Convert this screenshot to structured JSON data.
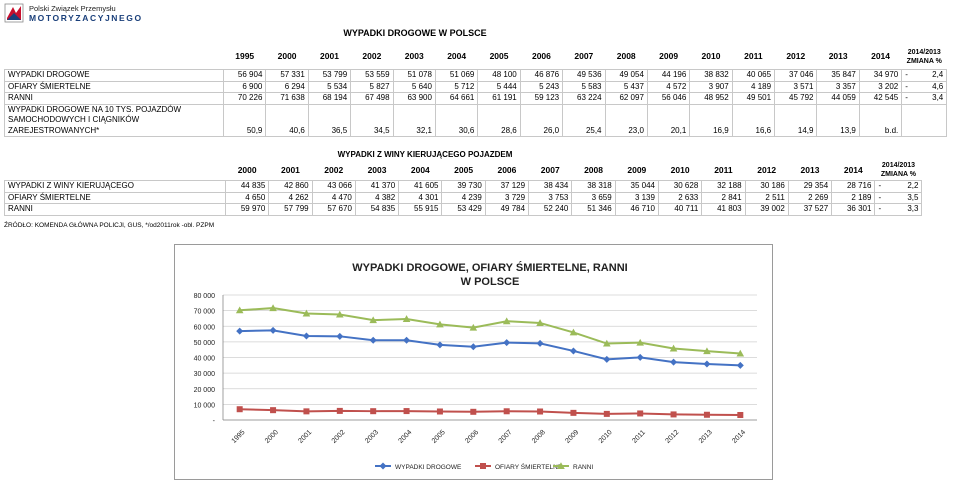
{
  "logo": {
    "line1": "Polski Związek Przemysłu",
    "line2": "MOTORYZACYJNEGO"
  },
  "table1": {
    "title": "WYPADKI DROGOWE W POLSCE",
    "years": [
      "1995",
      "2000",
      "2001",
      "2002",
      "2003",
      "2004",
      "2005",
      "2006",
      "2007",
      "2008",
      "2009",
      "2010",
      "2011",
      "2012",
      "2013",
      "2014"
    ],
    "change_header_line1": "2014/2013",
    "change_header_line2": "ZMIANA %",
    "rows": [
      {
        "label": "WYPADKI DROGOWE",
        "values": [
          "56 904",
          "57 331",
          "53 799",
          "53 559",
          "51 078",
          "51 069",
          "48 100",
          "46 876",
          "49 536",
          "49 054",
          "44 196",
          "38 832",
          "40 065",
          "37 046",
          "35 847",
          "34 970"
        ],
        "sign": "-",
        "change": "2,4"
      },
      {
        "label": "OFIARY ŚMIERTELNE",
        "values": [
          "6 900",
          "6 294",
          "5 534",
          "5 827",
          "5 640",
          "5 712",
          "5 444",
          "5 243",
          "5 583",
          "5 437",
          "4 572",
          "3 907",
          "4 189",
          "3 571",
          "3 357",
          "3 202"
        ],
        "sign": "-",
        "change": "4,6"
      },
      {
        "label": "RANNI",
        "values": [
          "70 226",
          "71 638",
          "68 194",
          "67 498",
          "63 900",
          "64 661",
          "61 191",
          "59 123",
          "63 224",
          "62 097",
          "56 046",
          "48 952",
          "49 501",
          "45 792",
          "44 059",
          "42 545"
        ],
        "sign": "-",
        "change": "3,4"
      },
      {
        "label": "WYPADKI DROGOWE NA 10 TYS. POJAZDÓW SAMOCHODOWYCH I CIĄGNIKÓW ZAREJESTROWANYCH*",
        "values": [
          "50,9",
          "40,6",
          "36,5",
          "34,5",
          "32,1",
          "30,6",
          "28,6",
          "26,0",
          "25,4",
          "23,0",
          "20,1",
          "16,9",
          "16,6",
          "14,9",
          "13,9",
          "b.d."
        ],
        "sign": "",
        "change": ""
      }
    ]
  },
  "table2": {
    "title": "WYPADKI Z WINY KIERUJĄCEGO POJAZDEM",
    "years": [
      "2000",
      "2001",
      "2002",
      "2003",
      "2004",
      "2005",
      "2006",
      "2007",
      "2008",
      "2009",
      "2010",
      "2011",
      "2012",
      "2013",
      "2014"
    ],
    "change_header_line1": "2014/2013",
    "change_header_line2": "ZMIANA %",
    "rows": [
      {
        "label": "WYPADKI Z WINY KIERUJĄCEGO",
        "values": [
          "44 835",
          "42 860",
          "43 066",
          "41 370",
          "41 605",
          "39 730",
          "37 129",
          "38 434",
          "38 318",
          "35 044",
          "30 628",
          "32 188",
          "30 186",
          "29 354",
          "28 716"
        ],
        "sign": "-",
        "change": "2,2"
      },
      {
        "label": "OFIARY ŚMIERTELNE",
        "values": [
          "4 650",
          "4 262",
          "4 470",
          "4 382",
          "4 301",
          "4 239",
          "3 729",
          "3 753",
          "3 659",
          "3 139",
          "2 633",
          "2 841",
          "2 511",
          "2 269",
          "2 189"
        ],
        "sign": "-",
        "change": "3,5"
      },
      {
        "label": "RANNI",
        "values": [
          "59 970",
          "57 799",
          "57 670",
          "54 835",
          "55 915",
          "53 429",
          "49 784",
          "52 240",
          "51 346",
          "46 710",
          "40 711",
          "41 803",
          "39 002",
          "37 527",
          "36 301"
        ],
        "sign": "-",
        "change": "3,3"
      }
    ]
  },
  "source": "ŹRÓDŁO: KOMENDA GŁÓWNA POLICJI, GUS, */od2011rok -obl. PZPM",
  "colors": {
    "accidents": "#4472C4",
    "fatalities": "#C0504D",
    "injured": "#9BBB59"
  },
  "chart_data": {
    "type": "line",
    "title": "WYPADKI DROGOWE, OFIARY ŚMIERTELNE, RANNI W POLSCE",
    "title_lines": [
      "WYPADKI DROGOWE, OFIARY ŚMIERTELNE, RANNI",
      "W POLSCE"
    ],
    "categories": [
      "1995",
      "2000",
      "2001",
      "2002",
      "2003",
      "2004",
      "2005",
      "2006",
      "2007",
      "2008",
      "2009",
      "2010",
      "2011",
      "2012",
      "2013",
      "2014"
    ],
    "series": [
      {
        "name": "WYPADKI DROGOWE",
        "marker": "diamond",
        "values": [
          56904,
          57331,
          53799,
          53559,
          51078,
          51069,
          48100,
          46876,
          49536,
          49054,
          44196,
          38832,
          40065,
          37046,
          35847,
          34970
        ]
      },
      {
        "name": "OFIARY ŚMIERTELNE",
        "marker": "square",
        "values": [
          6900,
          6294,
          5534,
          5827,
          5640,
          5712,
          5444,
          5243,
          5583,
          5437,
          4572,
          3907,
          4189,
          3571,
          3357,
          3202
        ]
      },
      {
        "name": "RANNI",
        "marker": "triangle",
        "values": [
          70226,
          71638,
          68194,
          67498,
          63900,
          64661,
          61191,
          59123,
          63224,
          62097,
          56046,
          48952,
          49501,
          45792,
          44059,
          42545
        ]
      }
    ],
    "ylim": [
      0,
      80000
    ],
    "y_ticks": [
      "-",
      "10 000",
      "20 000",
      "30 000",
      "40 000",
      "50 000",
      "60 000",
      "70 000",
      "80 000"
    ],
    "grid": true,
    "legend_position": "bottom"
  }
}
